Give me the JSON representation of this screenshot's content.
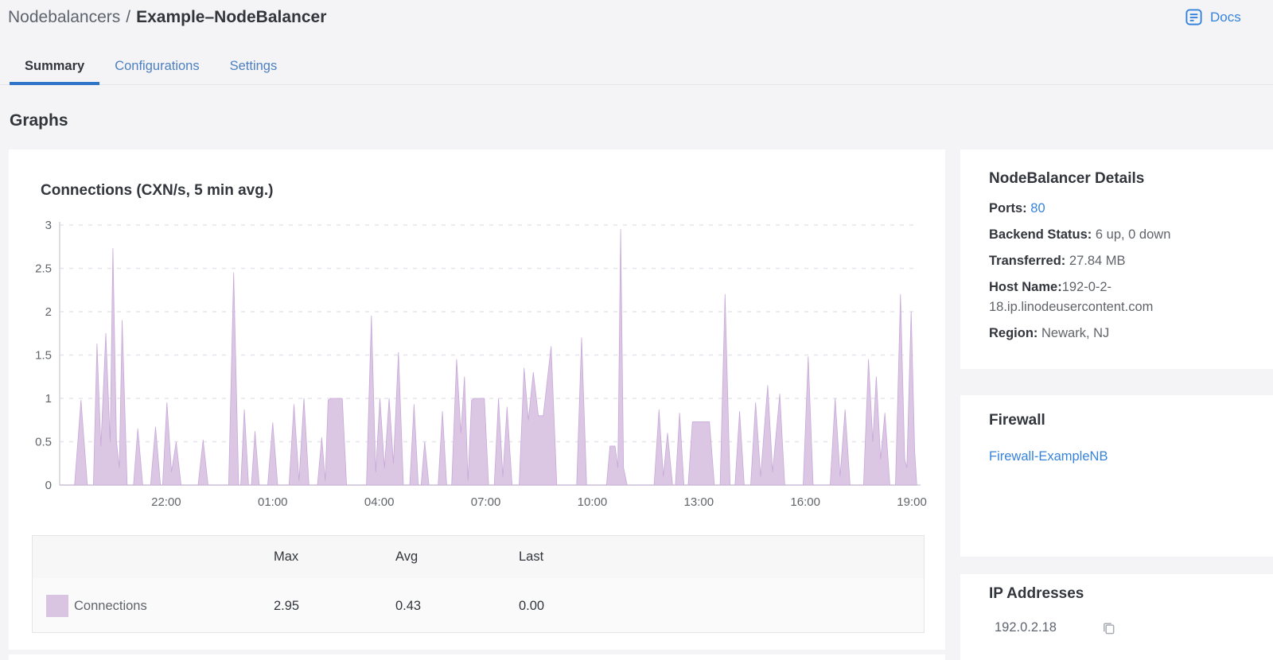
{
  "breadcrumb": {
    "section": "Nodebalancers",
    "separator": "/",
    "current": "Example–NodeBalancer"
  },
  "docs": {
    "label": "Docs"
  },
  "tabs": [
    {
      "label": "Summary",
      "active": true
    },
    {
      "label": "Configurations",
      "active": false
    },
    {
      "label": "Settings",
      "active": false
    }
  ],
  "page": {
    "section_heading": "Graphs"
  },
  "chart_data": {
    "type": "area",
    "title": "Connections (CXN/s, 5 min avg.)",
    "x_range": [
      0,
      24.2
    ],
    "y_range": [
      0,
      3
    ],
    "y_ticks": [
      0,
      0.5,
      1,
      1.5,
      2,
      2.5,
      3
    ],
    "y_tick_labels": [
      "0",
      "0.5",
      "1",
      "1.5",
      "2",
      "2.5",
      "3"
    ],
    "x_ticks": [
      {
        "t": 3,
        "label": "22:00"
      },
      {
        "t": 6,
        "label": "01:00"
      },
      {
        "t": 9,
        "label": "04:00"
      },
      {
        "t": 12,
        "label": "07:00"
      },
      {
        "t": 15,
        "label": "10:00"
      },
      {
        "t": 18,
        "label": "13:00"
      },
      {
        "t": 21,
        "label": "16:00"
      },
      {
        "t": 24,
        "label": "19:00"
      }
    ],
    "grid": "dashed",
    "legend_position": "bottom-table",
    "series": [
      {
        "name": "Connections",
        "unit": "CXN/s",
        "fill_color": "#dbc6e4",
        "stroke_color": "#c8a9d9",
        "points": [
          [
            0.0,
            0
          ],
          [
            0.42,
            0
          ],
          [
            0.6,
            0.98
          ],
          [
            0.78,
            0
          ],
          [
            0.95,
            0
          ],
          [
            1.05,
            1.63
          ],
          [
            1.16,
            0.45
          ],
          [
            1.3,
            1.75
          ],
          [
            1.42,
            0.5
          ],
          [
            1.5,
            2.73
          ],
          [
            1.6,
            0.5
          ],
          [
            1.68,
            0.2
          ],
          [
            1.76,
            1.9
          ],
          [
            1.9,
            0
          ],
          [
            2.08,
            0
          ],
          [
            2.2,
            0.65
          ],
          [
            2.34,
            0
          ],
          [
            2.56,
            0
          ],
          [
            2.7,
            0.67
          ],
          [
            2.84,
            0
          ],
          [
            2.9,
            0
          ],
          [
            3.02,
            0.95
          ],
          [
            3.15,
            0.15
          ],
          [
            3.28,
            0.5
          ],
          [
            3.42,
            0
          ],
          [
            3.9,
            0
          ],
          [
            4.04,
            0.52
          ],
          [
            4.18,
            0
          ],
          [
            4.76,
            0
          ],
          [
            4.9,
            2.45
          ],
          [
            5.04,
            0
          ],
          [
            5.1,
            0
          ],
          [
            5.2,
            0.87
          ],
          [
            5.32,
            0
          ],
          [
            5.4,
            0
          ],
          [
            5.5,
            0.62
          ],
          [
            5.62,
            0
          ],
          [
            5.86,
            0
          ],
          [
            6.0,
            0.72
          ],
          [
            6.14,
            0
          ],
          [
            6.46,
            0
          ],
          [
            6.6,
            0.93
          ],
          [
            6.74,
            0.05
          ],
          [
            6.88,
            1.0
          ],
          [
            7.02,
            0
          ],
          [
            7.26,
            0
          ],
          [
            7.38,
            0.55
          ],
          [
            7.48,
            0.05
          ],
          [
            7.56,
            0.98
          ],
          [
            7.64,
            1.0
          ],
          [
            7.96,
            1.0
          ],
          [
            8.08,
            0
          ],
          [
            8.64,
            0
          ],
          [
            8.78,
            1.95
          ],
          [
            8.9,
            0.15
          ],
          [
            9.02,
            1.0
          ],
          [
            9.15,
            0.2
          ],
          [
            9.28,
            1.0
          ],
          [
            9.4,
            0.25
          ],
          [
            9.54,
            1.53
          ],
          [
            9.68,
            0
          ],
          [
            9.86,
            0
          ],
          [
            9.98,
            0.93
          ],
          [
            10.1,
            0
          ],
          [
            10.18,
            0
          ],
          [
            10.28,
            0.5
          ],
          [
            10.4,
            0
          ],
          [
            10.66,
            0
          ],
          [
            10.78,
            0.85
          ],
          [
            10.9,
            0
          ],
          [
            11.04,
            0
          ],
          [
            11.18,
            1.45
          ],
          [
            11.3,
            0.6
          ],
          [
            11.4,
            1.25
          ],
          [
            11.5,
            0.05
          ],
          [
            11.6,
            0.98
          ],
          [
            11.68,
            1.0
          ],
          [
            11.96,
            1.0
          ],
          [
            12.08,
            0
          ],
          [
            12.24,
            0
          ],
          [
            12.36,
            1.0
          ],
          [
            12.48,
            0.1
          ],
          [
            12.6,
            0.9
          ],
          [
            12.74,
            0
          ],
          [
            12.94,
            0
          ],
          [
            13.08,
            1.35
          ],
          [
            13.2,
            0.75
          ],
          [
            13.34,
            1.3
          ],
          [
            13.48,
            0.8
          ],
          [
            13.62,
            0.8
          ],
          [
            13.84,
            1.6
          ],
          [
            14.0,
            0
          ],
          [
            14.56,
            0
          ],
          [
            14.7,
            1.7
          ],
          [
            14.84,
            0
          ],
          [
            15.4,
            0
          ],
          [
            15.5,
            0.45
          ],
          [
            15.64,
            0.45
          ],
          [
            15.72,
            0.2
          ],
          [
            15.8,
            2.95
          ],
          [
            15.88,
            0.2
          ],
          [
            15.98,
            0
          ],
          [
            16.74,
            0
          ],
          [
            16.88,
            0.87
          ],
          [
            17.0,
            0.1
          ],
          [
            17.12,
            0.6
          ],
          [
            17.26,
            0
          ],
          [
            17.34,
            0
          ],
          [
            17.46,
            0.83
          ],
          [
            17.58,
            0
          ],
          [
            17.7,
            0
          ],
          [
            17.82,
            0.73
          ],
          [
            18.3,
            0.73
          ],
          [
            18.44,
            0
          ],
          [
            18.6,
            0
          ],
          [
            18.74,
            2.2
          ],
          [
            18.88,
            0
          ],
          [
            19.02,
            0
          ],
          [
            19.15,
            0.85
          ],
          [
            19.28,
            0
          ],
          [
            19.46,
            0
          ],
          [
            19.6,
            0.95
          ],
          [
            19.74,
            0.1
          ],
          [
            19.94,
            1.15
          ],
          [
            20.08,
            0.15
          ],
          [
            20.28,
            1.05
          ],
          [
            20.42,
            0
          ],
          [
            20.94,
            0
          ],
          [
            21.08,
            1.48
          ],
          [
            21.22,
            0
          ],
          [
            21.7,
            0
          ],
          [
            21.84,
            1.0
          ],
          [
            21.98,
            0.1
          ],
          [
            22.12,
            0.87
          ],
          [
            22.26,
            0
          ],
          [
            22.64,
            0
          ],
          [
            22.78,
            1.45
          ],
          [
            22.9,
            0.5
          ],
          [
            23.0,
            1.25
          ],
          [
            23.12,
            0.3
          ],
          [
            23.24,
            0.83
          ],
          [
            23.38,
            0
          ],
          [
            23.54,
            0
          ],
          [
            23.68,
            2.2
          ],
          [
            23.8,
            0.3
          ],
          [
            23.86,
            0.2
          ],
          [
            23.98,
            2.0
          ],
          [
            24.08,
            0.4
          ],
          [
            24.14,
            0
          ]
        ]
      }
    ]
  },
  "legend_table": {
    "columns": [
      "Max",
      "Avg",
      "Last"
    ],
    "rows": [
      {
        "name": "Connections",
        "swatch_color": "#d9c4e2",
        "max": "2.95",
        "avg": "0.43",
        "last": "0.00"
      }
    ]
  },
  "sidebar": {
    "details": {
      "heading": "NodeBalancer Details",
      "rows": [
        {
          "label": "Ports:",
          "value": "80"
        },
        {
          "label": "Backend Status:",
          "value": "6 up, 0 down"
        },
        {
          "label": "Transferred:",
          "value": "27.84 MB"
        },
        {
          "label": "Host Name:",
          "value": "192-0-2-18.ip.linodeusercontent.com"
        },
        {
          "label": "Region:",
          "value": "Newark, NJ"
        }
      ]
    },
    "firewall": {
      "heading": "Firewall",
      "link": "Firewall-ExampleNB"
    },
    "ip_addresses": {
      "heading": "IP Addresses",
      "items": [
        {
          "ip": "192.0.2.18"
        }
      ]
    }
  },
  "colors": {
    "page_background": "#f4f4f6",
    "card_background": "#ffffff",
    "accent_blue": "#3683dc",
    "tab_underline": "#2e75c9",
    "grid_line": "#e6e5eb",
    "axis_line": "#d3d3d8",
    "axis_text": "#606469"
  }
}
